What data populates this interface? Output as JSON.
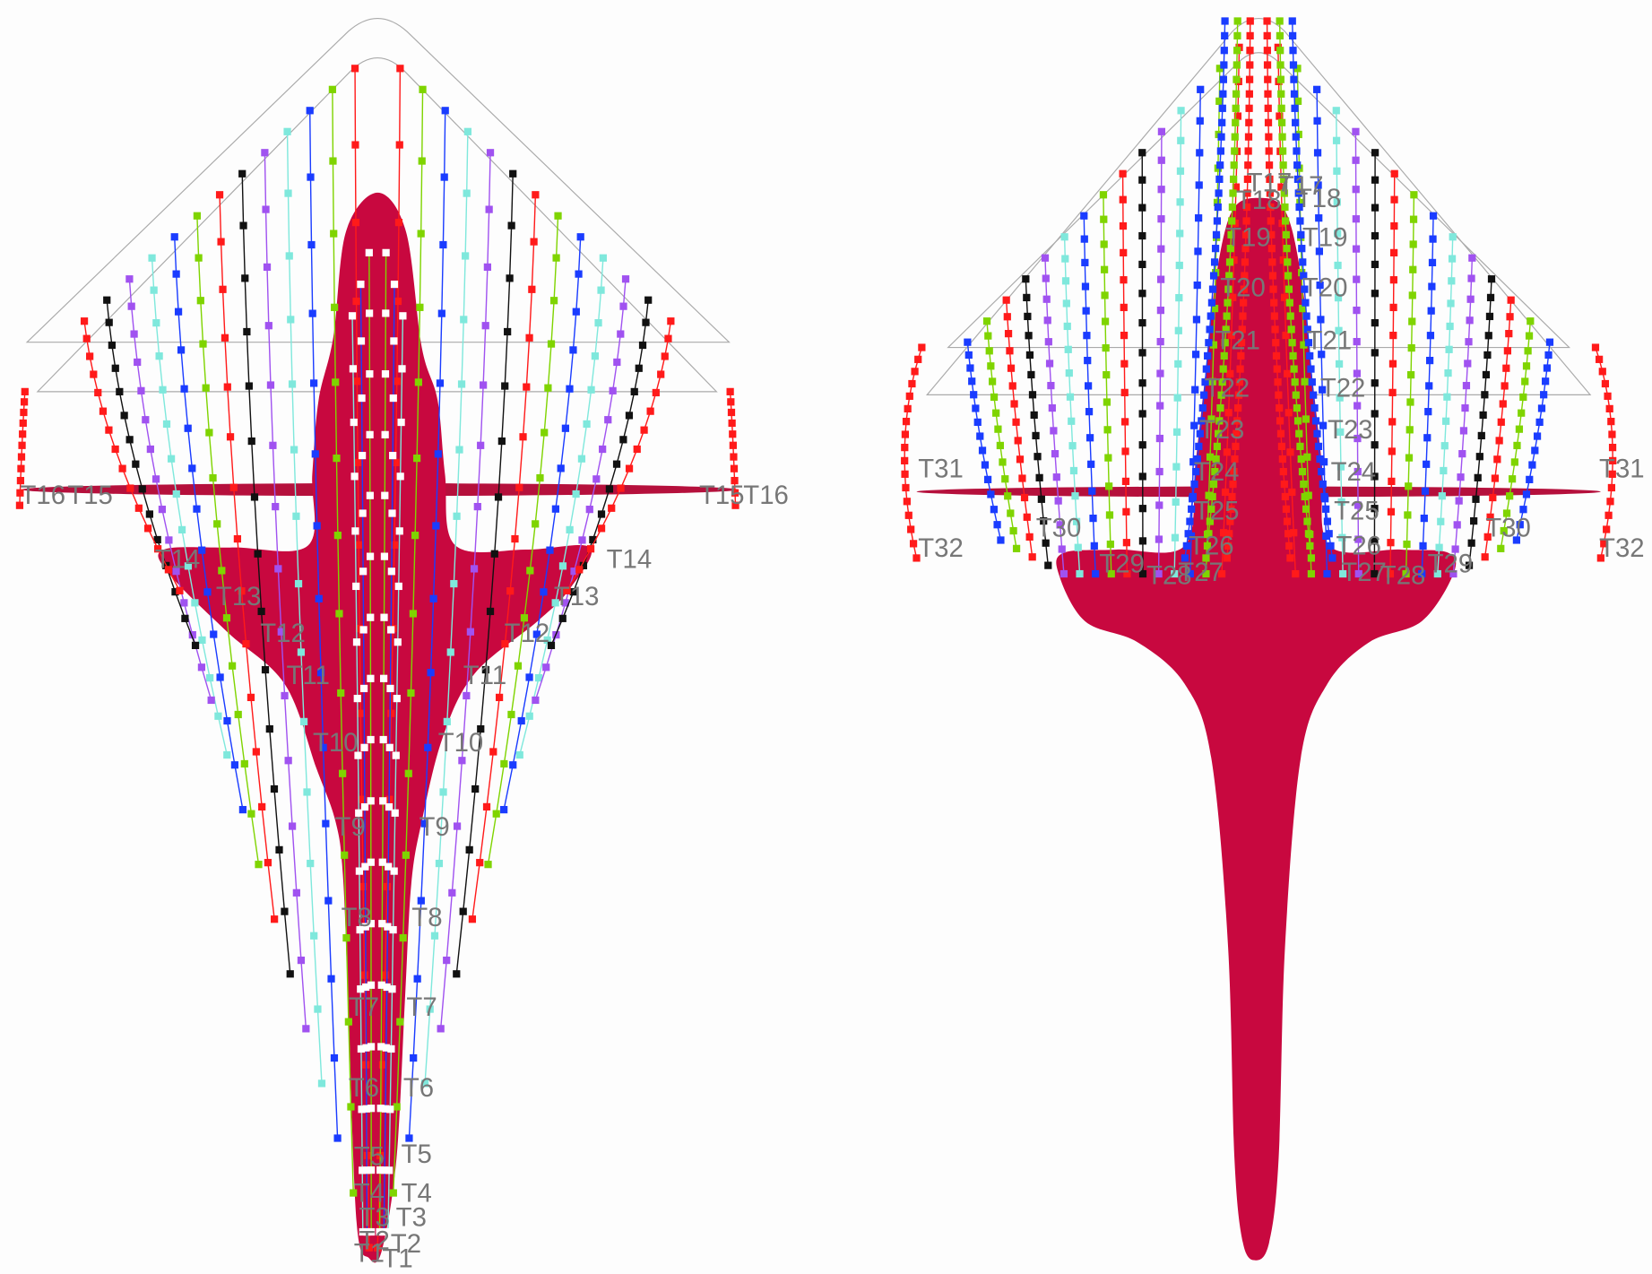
{
  "panels": [
    {
      "labels": [
        "T1",
        "T2",
        "T3",
        "T4",
        "T5",
        "T6",
        "T7",
        "T8",
        "T9",
        "T10",
        "T11",
        "T12",
        "T13",
        "T14",
        "T15",
        "T16"
      ]
    },
    {
      "labels": [
        "T17",
        "T18",
        "T19",
        "T20",
        "T21",
        "T22",
        "T23",
        "T24",
        "T25",
        "T26",
        "T27",
        "T28",
        "T29",
        "T30",
        "T31",
        "T32"
      ]
    }
  ]
}
